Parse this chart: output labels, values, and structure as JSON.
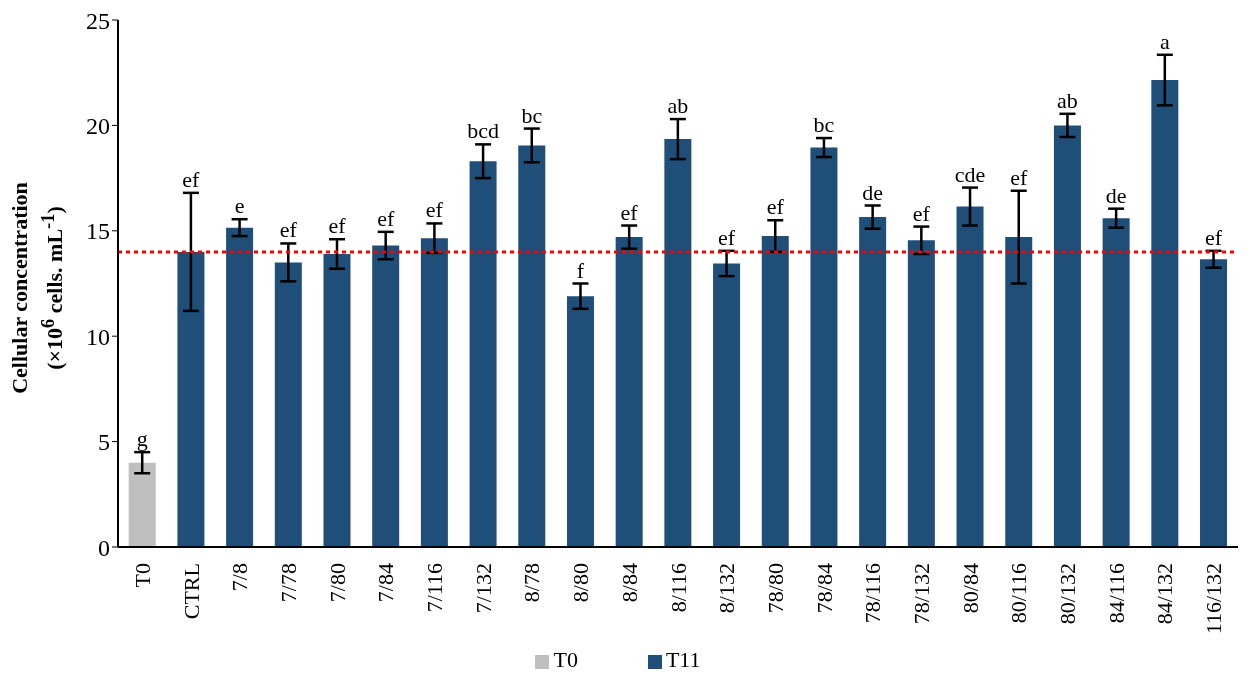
{
  "chart_data": {
    "type": "bar",
    "ylabel": "Cellular concentration (×10$^{6}$ cells. mL$^{-1}$)",
    "categories": [
      "T0",
      "CTRL",
      "7/8",
      "7/78",
      "7/80",
      "7/84",
      "7/116",
      "7/132",
      "8/78",
      "8/80",
      "8/84",
      "8/116",
      "8/132",
      "78/80",
      "78/84",
      "78/116",
      "78/132",
      "80/84",
      "80/116",
      "80/132",
      "84/116",
      "84/132",
      "116/132"
    ],
    "series": [
      {
        "name": "T0",
        "color": "#bfbfbf",
        "values": [
          4.0,
          null,
          null,
          null,
          null,
          null,
          null,
          null,
          null,
          null,
          null,
          null,
          null,
          null,
          null,
          null,
          null,
          null,
          null,
          null,
          null,
          null,
          null
        ],
        "errors": [
          0.5,
          null,
          null,
          null,
          null,
          null,
          null,
          null,
          null,
          null,
          null,
          null,
          null,
          null,
          null,
          null,
          null,
          null,
          null,
          null,
          null,
          null,
          null
        ],
        "value_labels": [
          "g",
          null,
          null,
          null,
          null,
          null,
          null,
          null,
          null,
          null,
          null,
          null,
          null,
          null,
          null,
          null,
          null,
          null,
          null,
          null,
          null,
          null,
          null
        ]
      },
      {
        "name": "T11",
        "color": "#1f4e79",
        "values": [
          null,
          14.0,
          15.15,
          13.5,
          13.9,
          14.3,
          14.65,
          18.3,
          19.05,
          11.9,
          14.7,
          19.35,
          13.45,
          14.75,
          18.95,
          15.65,
          14.55,
          16.15,
          14.7,
          20.0,
          15.6,
          22.15,
          13.65
        ],
        "errors": [
          null,
          2.8,
          0.4,
          0.9,
          0.7,
          0.65,
          0.7,
          0.8,
          0.8,
          0.6,
          0.55,
          0.95,
          0.6,
          0.75,
          0.45,
          0.55,
          0.65,
          0.9,
          2.2,
          0.55,
          0.45,
          1.2,
          0.4
        ],
        "value_labels": [
          null,
          "ef",
          "e",
          "ef",
          "ef",
          "ef",
          "ef",
          "bcd",
          "bc",
          "f",
          "ef",
          "ab",
          "ef",
          "ef",
          "bc",
          "de",
          "ef",
          "cde",
          "ef",
          "ab",
          "de",
          "a",
          "ef"
        ]
      }
    ],
    "ylim": [
      0,
      25
    ],
    "yticks": [
      0,
      5,
      10,
      15,
      20,
      25
    ],
    "ref_lines": [
      {
        "axis": "y",
        "value": 14.0,
        "color": "#ff0000",
        "line_style": "dotted"
      }
    ],
    "grid": false,
    "legend": "bottom"
  }
}
